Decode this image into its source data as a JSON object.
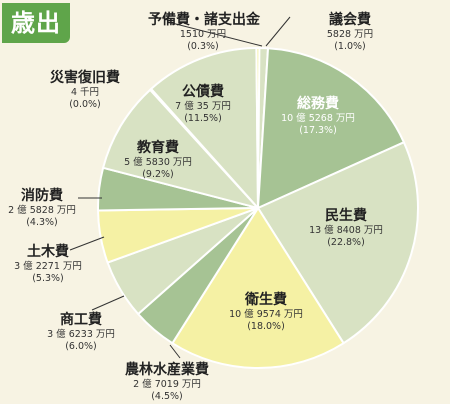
{
  "header": {
    "title": "歳出"
  },
  "colors": {
    "background": "#f7f3e3",
    "badge": "#5fa54a",
    "slice_light_green": "#d8e2c3",
    "slice_mid_green": "#a6c394",
    "slice_yellow": "#f5f1a4",
    "slice_edge": "#ffffff"
  },
  "chart_data": {
    "type": "pie",
    "title": "歳出",
    "start_angle_deg": -90,
    "direction": "clockwise",
    "slices": [
      {
        "name": "議会費",
        "amount": "5828 万円",
        "percent_label": "(1.0%)",
        "value": 1.0,
        "color": "#d8e2c3"
      },
      {
        "name": "総務費",
        "amount": "10 億 5268 万円",
        "percent_label": "(17.3%)",
        "value": 17.3,
        "color": "#a6c394"
      },
      {
        "name": "民生費",
        "amount": "13 億 8408 万円",
        "percent_label": "(22.8%)",
        "value": 22.8,
        "color": "#d8e2c3"
      },
      {
        "name": "衛生費",
        "amount": "10 億 9574 万円",
        "percent_label": "(18.0%)",
        "value": 18.0,
        "color": "#f5f1a4"
      },
      {
        "name": "農林水産業費",
        "amount": "2 億 7019 万円",
        "percent_label": "(4.5%)",
        "value": 4.5,
        "color": "#a6c394"
      },
      {
        "name": "商工費",
        "amount": "3 億 6233 万円",
        "percent_label": "(6.0%)",
        "value": 6.0,
        "color": "#d8e2c3"
      },
      {
        "name": "土木費",
        "amount": "3 億 2271 万円",
        "percent_label": "(5.3%)",
        "value": 5.3,
        "color": "#f5f1a4"
      },
      {
        "name": "消防費",
        "amount": "2 億 5828 万円",
        "percent_label": "(4.3%)",
        "value": 4.3,
        "color": "#a6c394"
      },
      {
        "name": "教育費",
        "amount": "5 億 5830 万円",
        "percent_label": "(9.2%)",
        "value": 9.2,
        "color": "#d8e2c3"
      },
      {
        "name": "災害復旧費",
        "amount": "4 千円",
        "percent_label": "(0.0%)",
        "value": 0.0,
        "color": "#f5f1a4"
      },
      {
        "name": "公債費",
        "amount": "7 億 35 万円",
        "percent_label": "(11.5%)",
        "value": 11.5,
        "color": "#d8e2c3"
      },
      {
        "name": "予備費・諸支出金",
        "amount": "1510 万円",
        "percent_label": "(0.3%)",
        "value": 0.3,
        "color": "#f5f1a4"
      }
    ]
  }
}
